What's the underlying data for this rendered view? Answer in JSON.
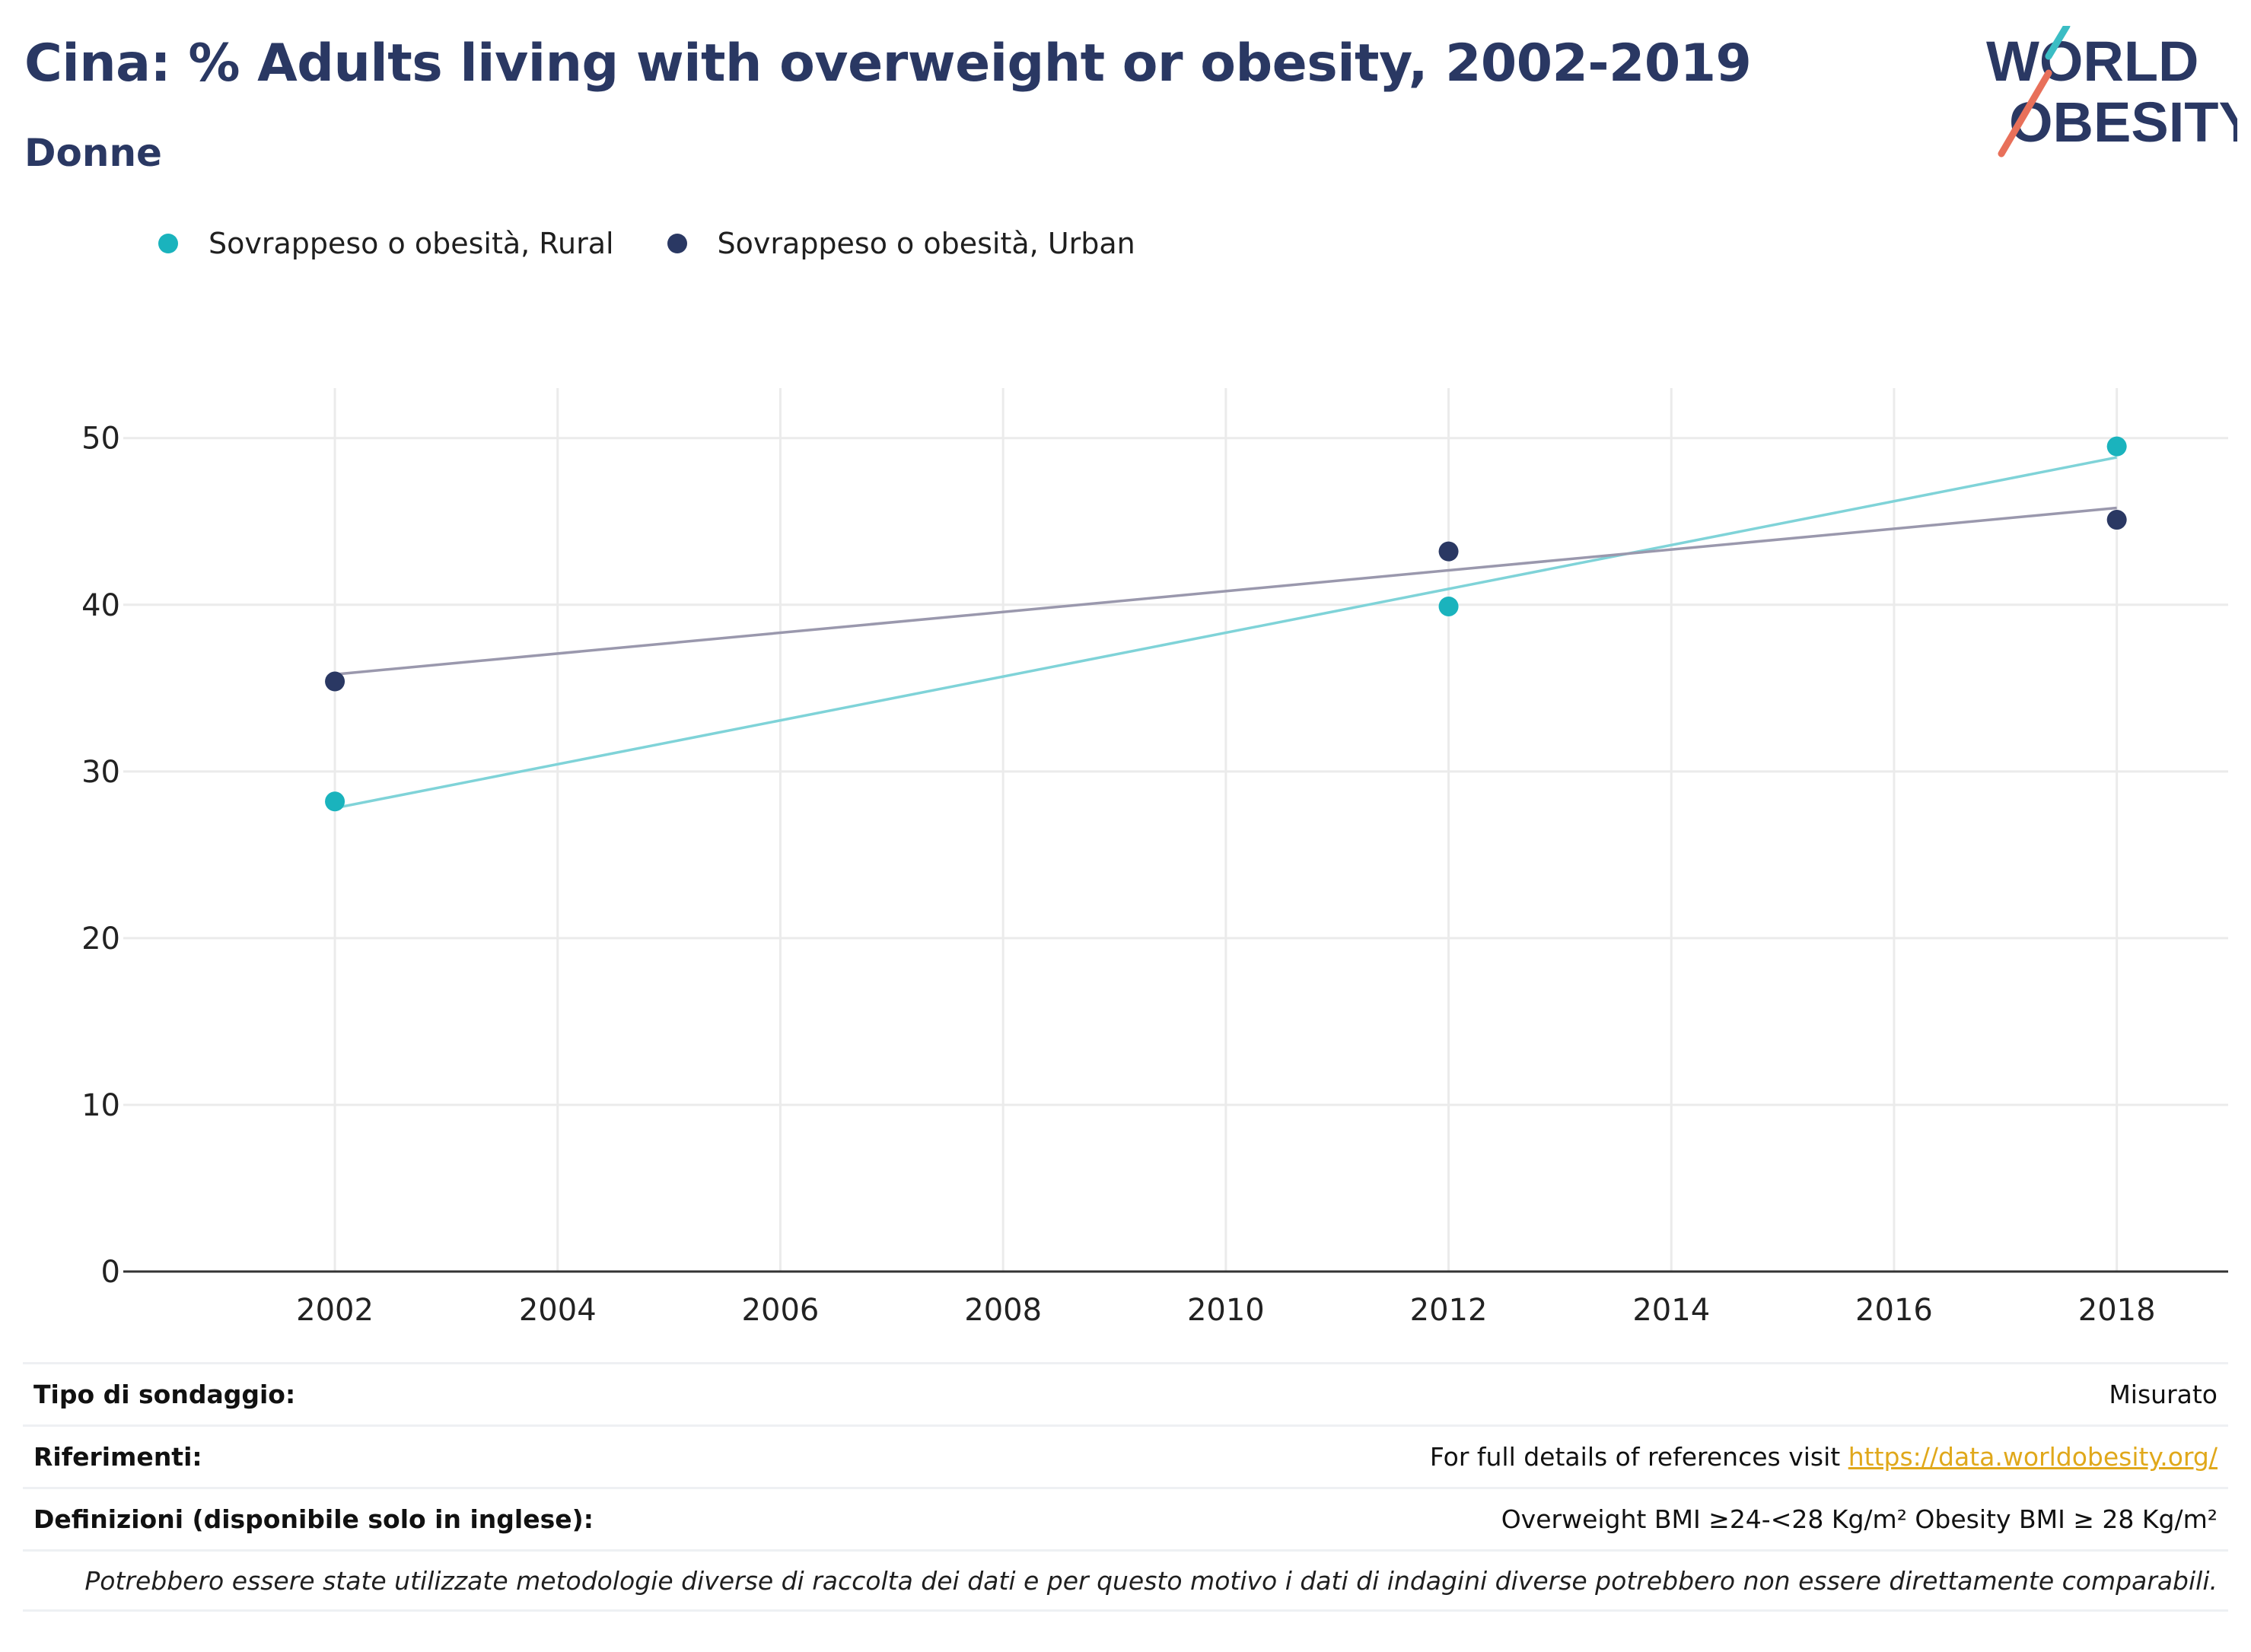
{
  "header": {
    "title": "Cina: % Adults living with overweight or obesity, 2002-2019",
    "subtitle": "Donne"
  },
  "logo": {
    "line1": "WORLD",
    "line2": "OBESITY"
  },
  "colors": {
    "rural": "#1ab3bd",
    "urban": "#2a3863",
    "rural_trend": "#7fd3d8",
    "urban_trend": "#9a98ad",
    "title": "#2a3863",
    "link": "#e0a81b"
  },
  "chart_data": {
    "type": "scatter",
    "title": "Cina: % Adults living with overweight or obesity, 2002-2019",
    "subtitle": "Donne",
    "xlabel": "",
    "ylabel": "",
    "xlim": [
      2000.1,
      2019.0
    ],
    "ylim": [
      0,
      53
    ],
    "xticks": [
      2002,
      2004,
      2006,
      2008,
      2010,
      2012,
      2014,
      2016,
      2018
    ],
    "yticks": [
      0,
      10,
      20,
      30,
      40,
      50
    ],
    "grid": true,
    "legend_position": "top-left",
    "trendlines": true,
    "series": [
      {
        "name": "Sovrappeso o obesità, Rural",
        "color": "#1ab3bd",
        "trend_color": "#7fd3d8",
        "points": [
          {
            "x": 2002,
            "y": 28.2
          },
          {
            "x": 2012,
            "y": 39.9
          },
          {
            "x": 2018,
            "y": 49.5
          }
        ]
      },
      {
        "name": "Sovrappeso o obesità, Urban",
        "color": "#2a3863",
        "trend_color": "#9a98ad",
        "points": [
          {
            "x": 2002,
            "y": 35.4
          },
          {
            "x": 2012,
            "y": 43.2
          },
          {
            "x": 2018,
            "y": 45.1
          }
        ]
      }
    ]
  },
  "footer": {
    "survey_label": "Tipo di sondaggio:",
    "survey_value": "Misurato",
    "references_label": "Riferimenti:",
    "references_text": "For full details of references visit ",
    "references_link": "https://data.worldobesity.org/",
    "definitions_label": "Definizioni (disponibile solo in inglese):",
    "definitions_value": "Overweight BMI ≥24-<28 Kg/m² Obesity BMI ≥ 28 Kg/m²",
    "note": "Potrebbero essere state utilizzate metodologie diverse di raccolta dei dati e per questo motivo i dati di indagini diverse potrebbero non essere direttamente comparabili."
  }
}
